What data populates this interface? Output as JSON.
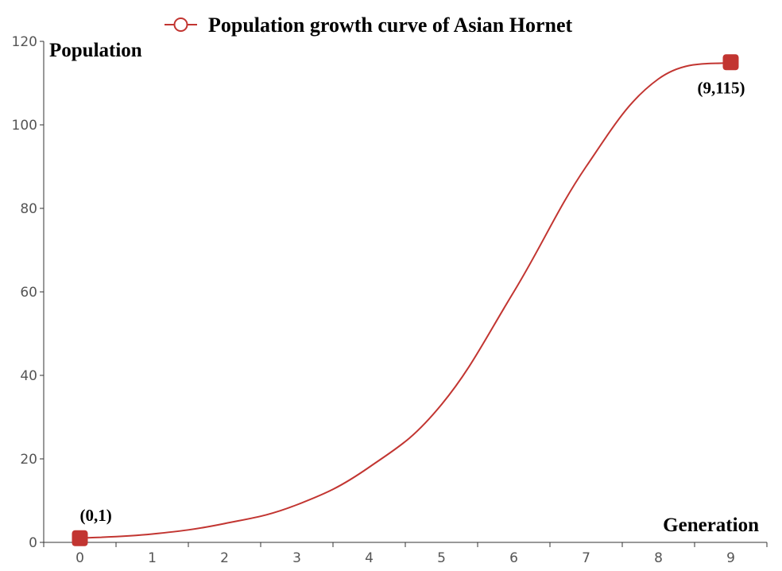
{
  "chart_data": {
    "type": "line",
    "legend": {
      "label": "Population growth curve of Asian Hornet",
      "placement": "top-center"
    },
    "xlabel": "Generation",
    "ylabel": "Population",
    "x": [
      0,
      1,
      2,
      3,
      4,
      5,
      6,
      7,
      8,
      9
    ],
    "x_ticks": [
      "0",
      "1",
      "2",
      "3",
      "4",
      "5",
      "6",
      "7",
      "8",
      "9"
    ],
    "xlim": [
      -0.5,
      9.5
    ],
    "ylim": [
      0,
      120
    ],
    "y_ticks": [
      "0",
      "20",
      "40",
      "60",
      "80",
      "100",
      "120"
    ],
    "grid": false,
    "series": [
      {
        "color": "#c23531",
        "values": [
          1,
          2,
          4.5,
          9,
          18,
          33,
          60,
          90,
          111,
          115
        ]
      }
    ],
    "annotations": [
      {
        "x": 0,
        "y": 1,
        "text": "(0,1)"
      },
      {
        "x": 9,
        "y": 115,
        "text": "(9,115)"
      }
    ]
  }
}
